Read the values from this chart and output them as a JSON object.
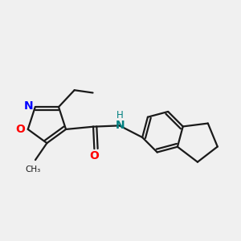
{
  "background_color": "#f0f0f0",
  "bond_color": "#1a1a1a",
  "N_color": "#0000ff",
  "O_color": "#ff0000",
  "NH_color": "#008080",
  "line_width": 1.6,
  "figsize": [
    3.0,
    3.0
  ],
  "dpi": 100,
  "xlim": [
    -0.3,
    4.2
  ],
  "ylim": [
    -1.5,
    1.8
  ]
}
